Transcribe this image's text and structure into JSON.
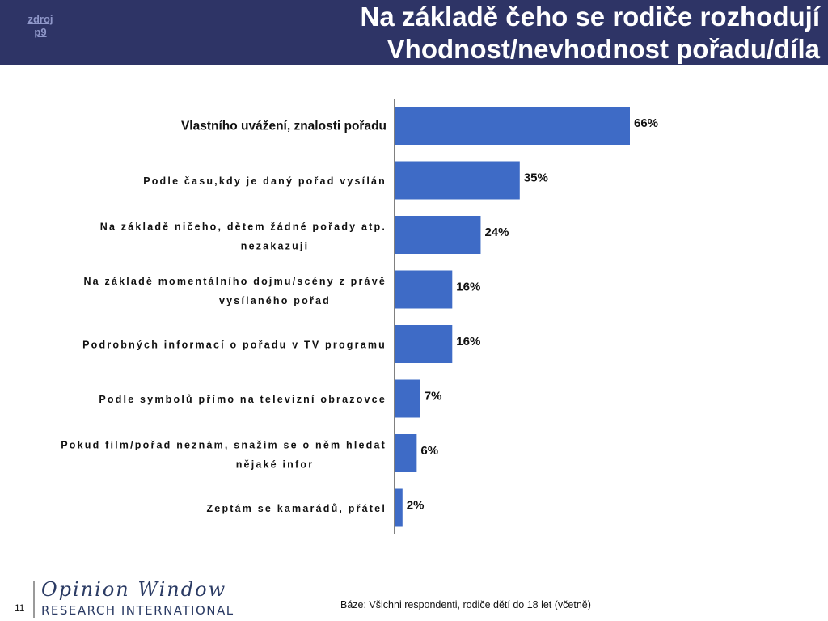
{
  "header": {
    "source_link": "zdroj p9",
    "title_line1": "Na základě čeho se rodiče rozhodují",
    "title_line2": "Vhodnost/nevhodnost pořadu/díla"
  },
  "colors": {
    "header_bg": "#2e3466",
    "bar": "#3e6bc6",
    "axis": "#808080"
  },
  "chart_data": {
    "type": "bar",
    "orientation": "horizontal",
    "categories": [
      [
        "Vlastního uvážení, znalosti pořadu"
      ],
      [
        "Podle času,kdy je daný pořad vysílán"
      ],
      [
        "Na základě ničeho, dětem žádné pořady atp.",
        "nezakazuji"
      ],
      [
        "Na základě momentálního dojmu/scény z právě",
        "vysílaného pořad"
      ],
      [
        "Podrobných informací o pořadu v TV programu"
      ],
      [
        "Podle symbolů přímo na televizní obrazovce"
      ],
      [
        "Pokud film/pořad neznám, snažím se o něm hledat",
        "nějaké infor"
      ],
      [
        "Zeptám se kamarádů, přátel"
      ]
    ],
    "values": [
      66,
      35,
      24,
      16,
      16,
      7,
      6,
      2
    ],
    "value_labels": [
      "66%",
      "35%",
      "24%",
      "16%",
      "16%",
      "7%",
      "6%",
      "2%"
    ],
    "unit": "%",
    "xlim": [
      0,
      100
    ],
    "grid": false
  },
  "footer": {
    "page_number": "11",
    "logo_script": "Opinion Window",
    "logo_caps": "RESEARCH INTERNATIONAL",
    "base_note": "Báze: Všichni respondenti, rodiče dětí do 18 let (včetně)"
  }
}
